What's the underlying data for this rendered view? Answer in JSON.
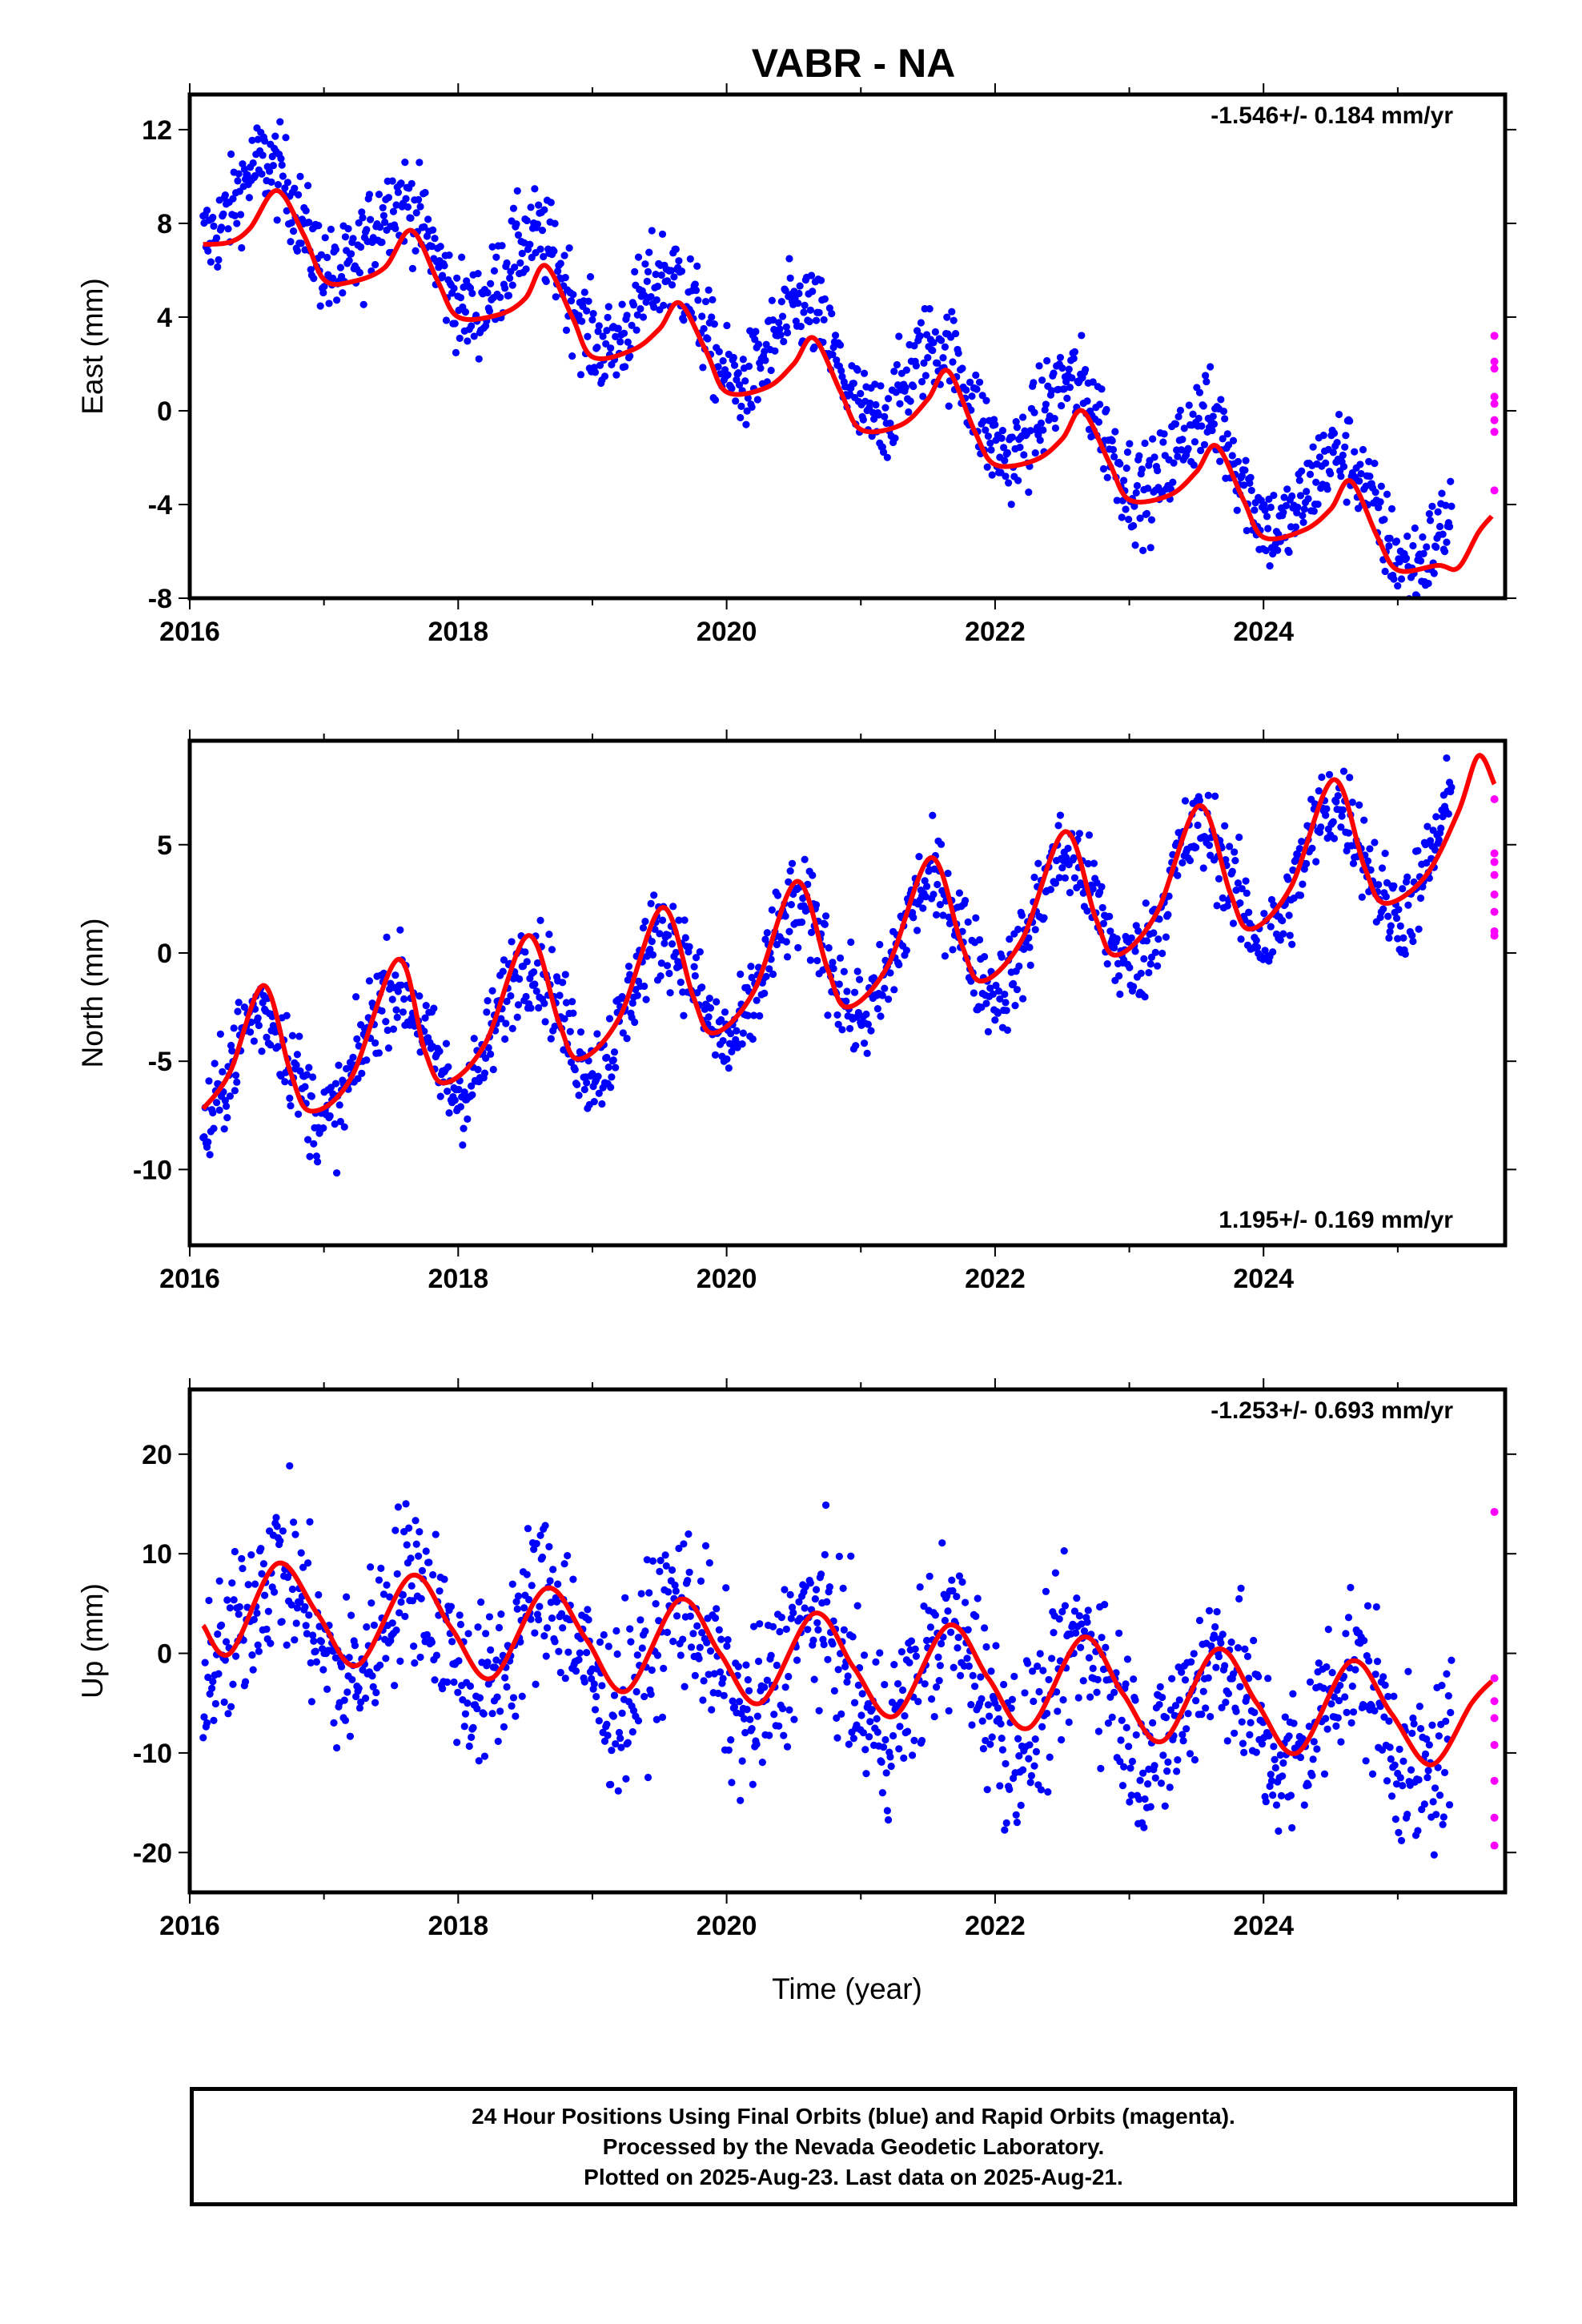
{
  "chart_data": {
    "type": "scatter",
    "title": "VABR - NA",
    "xlabel": "Time (year)",
    "xlim": [
      2016.0,
      2025.8
    ],
    "xticks": [
      2016,
      2018,
      2020,
      2022,
      2024
    ],
    "last_final_epoch": 2025.4,
    "rapid_start_epoch": 2025.5,
    "colors": {
      "final": "#0000ff",
      "rapid": "#ff00ff",
      "model": "#ff0000"
    },
    "panels": [
      {
        "name": "east",
        "ylabel": "East (mm)",
        "ylim": [
          -8,
          13.5
        ],
        "yticks": [
          -8,
          -4,
          0,
          4,
          8,
          12
        ],
        "rate_text": "-1.546+/- 0.184 mm/yr",
        "rate_position": "top-right",
        "trend_start": 9.3,
        "trend_rate": -1.546,
        "season_amp": 2.0,
        "season_phase": 0.58,
        "noise": 1.0,
        "model": [
          [
            2016.1,
            7.1
          ],
          [
            2016.3,
            7.2
          ],
          [
            2016.45,
            7.8
          ],
          [
            2016.65,
            9.4
          ],
          [
            2016.85,
            7.5
          ],
          [
            2017.0,
            5.6
          ],
          [
            2017.2,
            5.5
          ],
          [
            2017.45,
            6.1
          ],
          [
            2017.65,
            7.7
          ],
          [
            2017.85,
            5.5
          ],
          [
            2018.0,
            4.0
          ],
          [
            2018.3,
            4.1
          ],
          [
            2018.5,
            4.8
          ],
          [
            2018.65,
            6.2
          ],
          [
            2018.85,
            4.0
          ],
          [
            2019.0,
            2.3
          ],
          [
            2019.3,
            2.6
          ],
          [
            2019.5,
            3.5
          ],
          [
            2019.65,
            4.6
          ],
          [
            2019.85,
            2.5
          ],
          [
            2020.0,
            0.8
          ],
          [
            2020.3,
            1.0
          ],
          [
            2020.5,
            2.0
          ],
          [
            2020.65,
            3.1
          ],
          [
            2020.85,
            0.8
          ],
          [
            2021.0,
            -0.8
          ],
          [
            2021.3,
            -0.6
          ],
          [
            2021.5,
            0.5
          ],
          [
            2021.65,
            1.7
          ],
          [
            2021.85,
            -0.9
          ],
          [
            2022.0,
            -2.3
          ],
          [
            2022.3,
            -2.1
          ],
          [
            2022.5,
            -1.2
          ],
          [
            2022.65,
            0.0
          ],
          [
            2022.85,
            -2.2
          ],
          [
            2023.0,
            -3.8
          ],
          [
            2023.3,
            -3.6
          ],
          [
            2023.5,
            -2.6
          ],
          [
            2023.65,
            -1.5
          ],
          [
            2023.85,
            -3.8
          ],
          [
            2024.0,
            -5.4
          ],
          [
            2024.3,
            -5.1
          ],
          [
            2024.5,
            -4.2
          ],
          [
            2024.65,
            -3.0
          ],
          [
            2024.85,
            -5.4
          ],
          [
            2025.0,
            -6.8
          ],
          [
            2025.3,
            -6.6
          ],
          [
            2025.45,
            -6.7
          ],
          [
            2025.6,
            -5.2
          ],
          [
            2025.7,
            -4.5
          ]
        ],
        "rapid_values": [
          3.2,
          2.1,
          1.8,
          0.6,
          0.3,
          -0.4,
          -0.9,
          -3.4
        ]
      },
      {
        "name": "north",
        "ylabel": "North (mm)",
        "ylim": [
          -13.5,
          9.8
        ],
        "yticks": [
          -10,
          -5,
          0,
          5
        ],
        "rate_text": "1.195+/- 0.169 mm/yr",
        "rate_position": "bottom-right",
        "trend_start": -6.0,
        "trend_rate": 1.195,
        "season_amp": 2.8,
        "season_phase": 0.52,
        "noise": 1.1,
        "model": [
          [
            2016.1,
            -7.2
          ],
          [
            2016.3,
            -5.5
          ],
          [
            2016.55,
            -1.5
          ],
          [
            2016.75,
            -5.5
          ],
          [
            2016.9,
            -7.3
          ],
          [
            2017.2,
            -5.8
          ],
          [
            2017.55,
            -0.3
          ],
          [
            2017.75,
            -4.5
          ],
          [
            2017.9,
            -6.0
          ],
          [
            2018.2,
            -4.2
          ],
          [
            2018.52,
            0.8
          ],
          [
            2018.75,
            -3.2
          ],
          [
            2018.9,
            -4.9
          ],
          [
            2019.2,
            -3.0
          ],
          [
            2019.52,
            2.1
          ],
          [
            2019.75,
            -2.0
          ],
          [
            2019.9,
            -3.7
          ],
          [
            2020.2,
            -1.8
          ],
          [
            2020.52,
            3.3
          ],
          [
            2020.75,
            -0.7
          ],
          [
            2020.9,
            -2.5
          ],
          [
            2021.2,
            -0.6
          ],
          [
            2021.52,
            4.4
          ],
          [
            2021.75,
            0.4
          ],
          [
            2021.9,
            -1.3
          ],
          [
            2022.2,
            0.6
          ],
          [
            2022.52,
            5.6
          ],
          [
            2022.75,
            1.6
          ],
          [
            2022.9,
            -0.1
          ],
          [
            2023.2,
            1.8
          ],
          [
            2023.52,
            6.8
          ],
          [
            2023.75,
            2.8
          ],
          [
            2023.9,
            1.1
          ],
          [
            2024.2,
            3.0
          ],
          [
            2024.52,
            8.0
          ],
          [
            2024.75,
            4.0
          ],
          [
            2024.9,
            2.3
          ],
          [
            2025.2,
            3.5
          ],
          [
            2025.45,
            6.5
          ],
          [
            2025.6,
            9.1
          ],
          [
            2025.72,
            7.8
          ]
        ],
        "rapid_values": [
          7.1,
          4.6,
          4.2,
          3.6,
          2.7,
          1.9,
          1.0,
          0.8
        ]
      },
      {
        "name": "up",
        "ylabel": "Up (mm)",
        "ylim": [
          -24,
          26.5
        ],
        "yticks": [
          -20,
          -10,
          0,
          10,
          20
        ],
        "rate_text": "-1.253+/- 0.693 mm/yr",
        "rate_position": "top-right",
        "trend_start": 4.0,
        "trend_rate": -1.253,
        "season_amp": 5.5,
        "season_phase": 0.66,
        "noise": 4.2,
        "model": [
          [
            2016.1,
            2.8
          ],
          [
            2016.3,
            0.0
          ],
          [
            2016.65,
            9.0
          ],
          [
            2016.95,
            4.0
          ],
          [
            2017.25,
            -1.2
          ],
          [
            2017.65,
            7.8
          ],
          [
            2017.95,
            2.5
          ],
          [
            2018.25,
            -2.5
          ],
          [
            2018.65,
            6.5
          ],
          [
            2018.95,
            1.5
          ],
          [
            2019.25,
            -3.8
          ],
          [
            2019.65,
            5.4
          ],
          [
            2019.95,
            0.0
          ],
          [
            2020.25,
            -5.0
          ],
          [
            2020.65,
            4.0
          ],
          [
            2020.95,
            -1.5
          ],
          [
            2021.25,
            -6.3
          ],
          [
            2021.65,
            2.8
          ],
          [
            2021.95,
            -2.5
          ],
          [
            2022.25,
            -7.5
          ],
          [
            2022.65,
            1.6
          ],
          [
            2022.95,
            -4.0
          ],
          [
            2023.25,
            -8.8
          ],
          [
            2023.65,
            0.4
          ],
          [
            2023.95,
            -5.0
          ],
          [
            2024.25,
            -10.0
          ],
          [
            2024.65,
            -0.8
          ],
          [
            2024.95,
            -6.0
          ],
          [
            2025.25,
            -11.2
          ],
          [
            2025.55,
            -5.0
          ],
          [
            2025.7,
            -2.8
          ]
        ],
        "rapid_values": [
          14.2,
          -2.5,
          -4.8,
          -6.5,
          -9.2,
          -12.8,
          -16.5,
          -19.3
        ]
      }
    ]
  },
  "footer": {
    "line1": "24 Hour Positions Using Final Orbits (blue) and Rapid Orbits (magenta).",
    "line2": "Processed by the Nevada Geodetic Laboratory.",
    "line3": "Plotted on 2025-Aug-23. Last data on 2025-Aug-21."
  }
}
